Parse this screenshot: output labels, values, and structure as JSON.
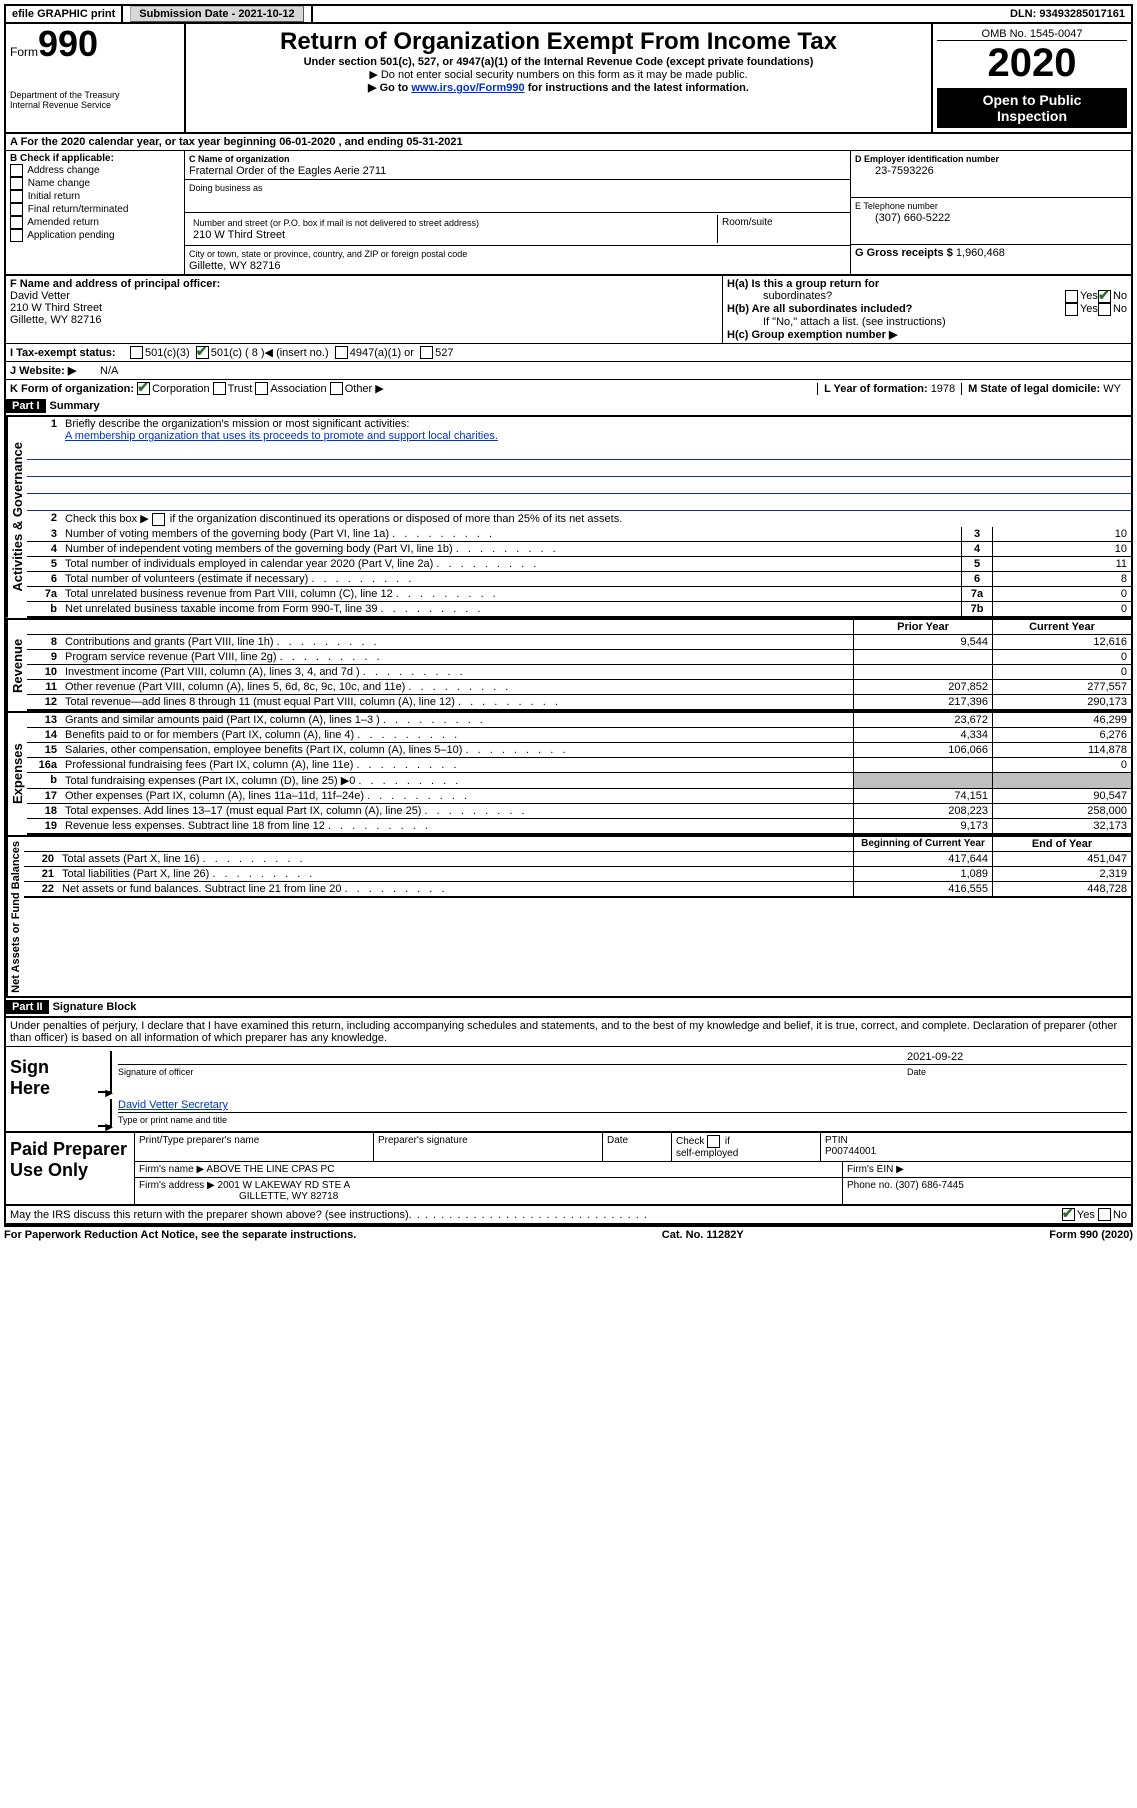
{
  "topbar": {
    "efile": "efile GRAPHIC print",
    "submission_label": "Submission Date - 2021-10-12",
    "dln_label": "DLN: 93493285017161"
  },
  "header": {
    "form_word": "Form",
    "form_number": "990",
    "dept": "Department of the Treasury",
    "irs": "Internal Revenue Service",
    "title": "Return of Organization Exempt From Income Tax",
    "subtitle": "Under section 501(c), 527, or 4947(a)(1) of the Internal Revenue Code (except private foundations)",
    "note1": "▶ Do not enter social security numbers on this form as it may be made public.",
    "note2_pre": "▶ Go to ",
    "note2_link": "www.irs.gov/Form990",
    "note2_post": " for instructions and the latest information.",
    "omb": "OMB No. 1545-0047",
    "year": "2020",
    "open_public1": "Open to Public",
    "open_public2": "Inspection"
  },
  "lineA": "A For the 2020 calendar year, or tax year beginning 06-01-2020   , and ending 05-31-2021",
  "colB": {
    "label": "B Check if applicable:",
    "items": [
      "Address change",
      "Name change",
      "Initial return",
      "Final return/terminated",
      "Amended return",
      "Application pending"
    ]
  },
  "colC": {
    "name_label": "C Name of organization",
    "name": "Fraternal Order of the Eagles Aerie 2711",
    "dba_label": "Doing business as",
    "addr_label": "Number and street (or P.O. box if mail is not delivered to street address)",
    "room_label": "Room/suite",
    "addr": "210 W Third Street",
    "city_label": "City or town, state or province, country, and ZIP or foreign postal code",
    "city": "Gillette, WY  82716"
  },
  "colD": {
    "ein_label": "D Employer identification number",
    "ein": "23-7593226",
    "tel_label": "E Telephone number",
    "tel": "(307) 660-5222",
    "gross_label": "G Gross receipts $",
    "gross": "1,960,468"
  },
  "blockF": {
    "label": "F  Name and address of principal officer:",
    "name": "David Vetter",
    "addr1": "210 W Third Street",
    "addr2": "Gillette, WY  82716"
  },
  "blockH": {
    "ha": "H(a)  Is this a group return for",
    "ha2": "subordinates?",
    "hb": "H(b)  Are all subordinates included?",
    "hb_note": "If \"No,\" attach a list. (see instructions)",
    "hc": "H(c)  Group exemption number ▶",
    "yes": "Yes",
    "no": "No"
  },
  "lineI": {
    "label": "I  Tax-exempt status:",
    "opt1": "501(c)(3)",
    "opt2a": "501(c) ( 8 ) ",
    "opt2b": "◀ (insert no.)",
    "opt3": "4947(a)(1) or",
    "opt4": "527"
  },
  "lineJ": {
    "label": "J  Website: ▶",
    "val": "N/A"
  },
  "lineK": {
    "label": "K Form of organization:",
    "corp": "Corporation",
    "trust": "Trust",
    "assoc": "Association",
    "other": "Other ▶",
    "l_label": "L Year of formation:",
    "l_val": "1978",
    "m_label": "M State of legal domicile:",
    "m_val": "WY"
  },
  "part1": {
    "hdr": "Part I",
    "title": "Summary",
    "q1": "Briefly describe the organization's mission or most significant activities:",
    "q1_ans": "A membership organization that uses its proceeds to promote and support local charities.",
    "q2": "Check this box ▶        if the organization discontinued its operations or disposed of more than 25% of its net assets.",
    "rows_gov": [
      {
        "n": "3",
        "t": "Number of voting members of the governing body (Part VI, line 1a)",
        "box": "3",
        "val": "10"
      },
      {
        "n": "4",
        "t": "Number of independent voting members of the governing body (Part VI, line 1b)",
        "box": "4",
        "val": "10"
      },
      {
        "n": "5",
        "t": "Total number of individuals employed in calendar year 2020 (Part V, line 2a)",
        "box": "5",
        "val": "11"
      },
      {
        "n": "6",
        "t": "Total number of volunteers (estimate if necessary)",
        "box": "6",
        "val": "8"
      },
      {
        "n": "7a",
        "t": "Total unrelated business revenue from Part VIII, column (C), line 12",
        "box": "7a",
        "val": "0"
      },
      {
        "n": "b",
        "t": "Net unrelated business taxable income from Form 990-T, line 39",
        "box": "7b",
        "val": "0"
      }
    ],
    "col_prior": "Prior Year",
    "col_curr": "Current Year",
    "rev": [
      {
        "n": "8",
        "t": "Contributions and grants (Part VIII, line 1h)",
        "p": "9,544",
        "c": "12,616"
      },
      {
        "n": "9",
        "t": "Program service revenue (Part VIII, line 2g)",
        "p": "",
        "c": "0"
      },
      {
        "n": "10",
        "t": "Investment income (Part VIII, column (A), lines 3, 4, and 7d )",
        "p": "",
        "c": "0"
      },
      {
        "n": "11",
        "t": "Other revenue (Part VIII, column (A), lines 5, 6d, 8c, 9c, 10c, and 11e)",
        "p": "207,852",
        "c": "277,557"
      },
      {
        "n": "12",
        "t": "Total revenue—add lines 8 through 11 (must equal Part VIII, column (A), line 12)",
        "p": "217,396",
        "c": "290,173"
      }
    ],
    "exp": [
      {
        "n": "13",
        "t": "Grants and similar amounts paid (Part IX, column (A), lines 1–3 )",
        "p": "23,672",
        "c": "46,299"
      },
      {
        "n": "14",
        "t": "Benefits paid to or for members (Part IX, column (A), line 4)",
        "p": "4,334",
        "c": "6,276"
      },
      {
        "n": "15",
        "t": "Salaries, other compensation, employee benefits (Part IX, column (A), lines 5–10)",
        "p": "106,066",
        "c": "114,878"
      },
      {
        "n": "16a",
        "t": "Professional fundraising fees (Part IX, column (A), line 11e)",
        "p": "",
        "c": "0"
      },
      {
        "n": "b",
        "t": "Total fundraising expenses (Part IX, column (D), line 25) ▶0",
        "p": "grey",
        "c": "grey"
      },
      {
        "n": "17",
        "t": "Other expenses (Part IX, column (A), lines 11a–11d, 11f–24e)",
        "p": "74,151",
        "c": "90,547"
      },
      {
        "n": "18",
        "t": "Total expenses. Add lines 13–17 (must equal Part IX, column (A), line 25)",
        "p": "208,223",
        "c": "258,000"
      },
      {
        "n": "19",
        "t": "Revenue less expenses. Subtract line 18 from line 12",
        "p": "9,173",
        "c": "32,173"
      }
    ],
    "col_beg": "Beginning of Current Year",
    "col_end": "End of Year",
    "net": [
      {
        "n": "20",
        "t": "Total assets (Part X, line 16)",
        "p": "417,644",
        "c": "451,047"
      },
      {
        "n": "21",
        "t": "Total liabilities (Part X, line 26)",
        "p": "1,089",
        "c": "2,319"
      },
      {
        "n": "22",
        "t": "Net assets or fund balances. Subtract line 21 from line 20",
        "p": "416,555",
        "c": "448,728"
      }
    ],
    "side_gov": "Activities & Governance",
    "side_rev": "Revenue",
    "side_exp": "Expenses",
    "side_net": "Net Assets or Fund Balances"
  },
  "part2": {
    "hdr": "Part II",
    "title": "Signature Block",
    "decl": "Under penalties of perjury, I declare that I have examined this return, including accompanying schedules and statements, and to the best of my knowledge and belief, it is true, correct, and complete. Declaration of preparer (other than officer) is based on all information of which preparer has any knowledge.",
    "sign_here": "Sign Here",
    "sig_officer": "Signature of officer",
    "date": "Date",
    "date_val": "2021-09-22",
    "officer_name": "David Vetter  Secretary",
    "type_name": "Type or print name and title",
    "paid": "Paid Preparer Use Only",
    "pt_name": "Print/Type preparer's name",
    "pt_sig": "Preparer's signature",
    "pt_date": "Date",
    "self_emp": "Check        if self-employed",
    "ptin_label": "PTIN",
    "ptin": "P00744001",
    "firm_name_l": "Firm's name    ▶",
    "firm_name": "ABOVE THE LINE CPAS PC",
    "firm_ein_l": "Firm's EIN ▶",
    "firm_addr_l": "Firm's address ▶",
    "firm_addr1": "2001 W LAKEWAY RD STE A",
    "firm_addr2": "GILLETTE, WY  82718",
    "phone_l": "Phone no.",
    "phone": "(307) 686-7445",
    "discuss": "May the IRS discuss this return with the preparer shown above? (see instructions)",
    "yes": "Yes",
    "no": "No"
  },
  "footer": {
    "left": "For Paperwork Reduction Act Notice, see the separate instructions.",
    "mid": "Cat. No. 11282Y",
    "right": "Form 990 (2020)"
  }
}
